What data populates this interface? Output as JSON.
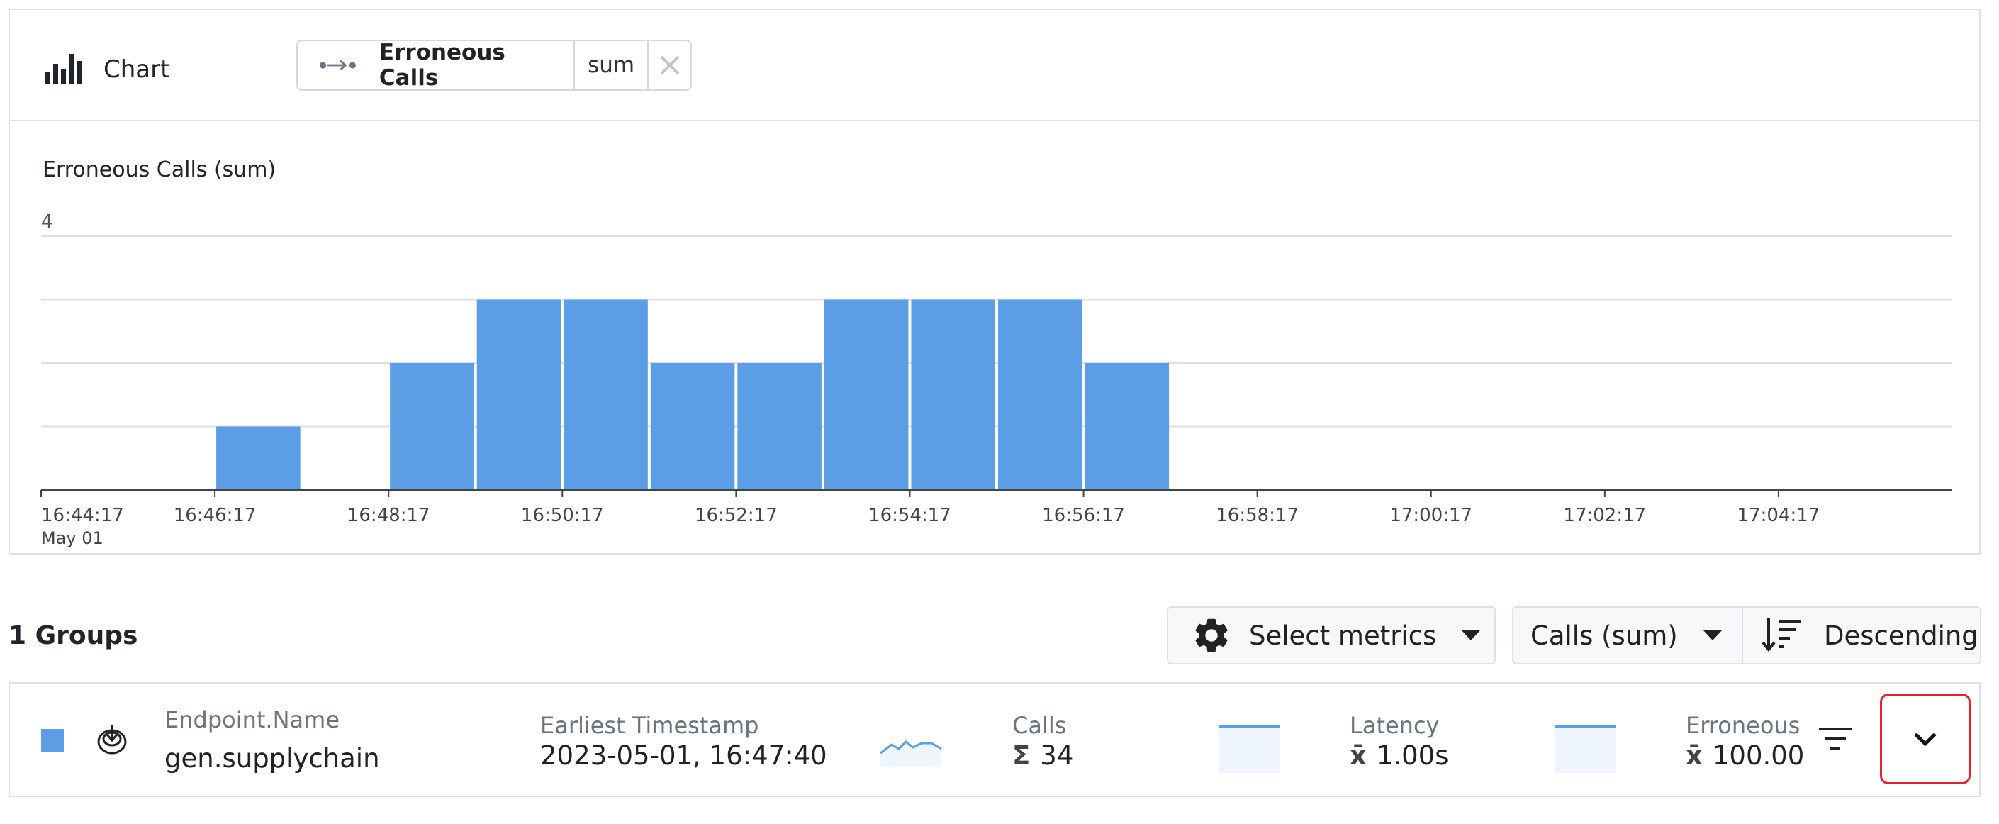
{
  "panel": {
    "title": "Chart",
    "metric_chip": {
      "label": "Erroneous Calls",
      "aggregation": "sum"
    }
  },
  "chart_data": {
    "type": "bar",
    "title": "Erroneous Calls (sum)",
    "x_tick_labels": [
      "16:44:17",
      "16:46:17",
      "16:48:17",
      "16:50:17",
      "16:52:17",
      "16:54:17",
      "16:56:17",
      "16:58:17",
      "17:00:17",
      "17:02:17",
      "17:04:17"
    ],
    "x_date_label": "May 01",
    "bucket_minutes": 1,
    "x_start": "16:44:17",
    "x_end": "17:06:17",
    "categories": [
      "16:44:17",
      "16:45:17",
      "16:46:17",
      "16:47:17",
      "16:48:17",
      "16:49:17",
      "16:50:17",
      "16:51:17",
      "16:52:17",
      "16:53:17",
      "16:54:17",
      "16:55:17",
      "16:56:17",
      "16:57:17",
      "16:58:17",
      "16:59:17",
      "17:00:17",
      "17:01:17",
      "17:02:17",
      "17:03:17",
      "17:04:17",
      "17:05:17"
    ],
    "values": [
      0,
      0,
      1,
      0,
      2,
      3,
      3,
      2,
      2,
      3,
      3,
      3,
      2,
      0,
      0,
      0,
      0,
      0,
      0,
      0,
      0,
      0
    ],
    "ylim": [
      0,
      4
    ],
    "y_tick_labels": [
      "4"
    ],
    "grid": true,
    "bar_color": "#5b9ee6"
  },
  "groups": {
    "title": "1 Groups",
    "select_metrics_label": "Select metrics",
    "sort_metric_label": "Calls (sum)",
    "sort_order_label": "Descending"
  },
  "group_row": {
    "color": "#5b9ee6",
    "endpoint_label": "Endpoint.Name",
    "endpoint_value": "gen.supplychain",
    "timestamp_label": "Earliest Timestamp",
    "timestamp_value": "2023-05-01, 16:47:40",
    "calls": {
      "label": "Calls",
      "symbol": "Σ",
      "value": "34"
    },
    "latency": {
      "label": "Latency",
      "symbol": "x̄",
      "value": "1.00s"
    },
    "erroneous": {
      "label": "Erroneous",
      "symbol": "x̄",
      "value": "100.00"
    }
  }
}
